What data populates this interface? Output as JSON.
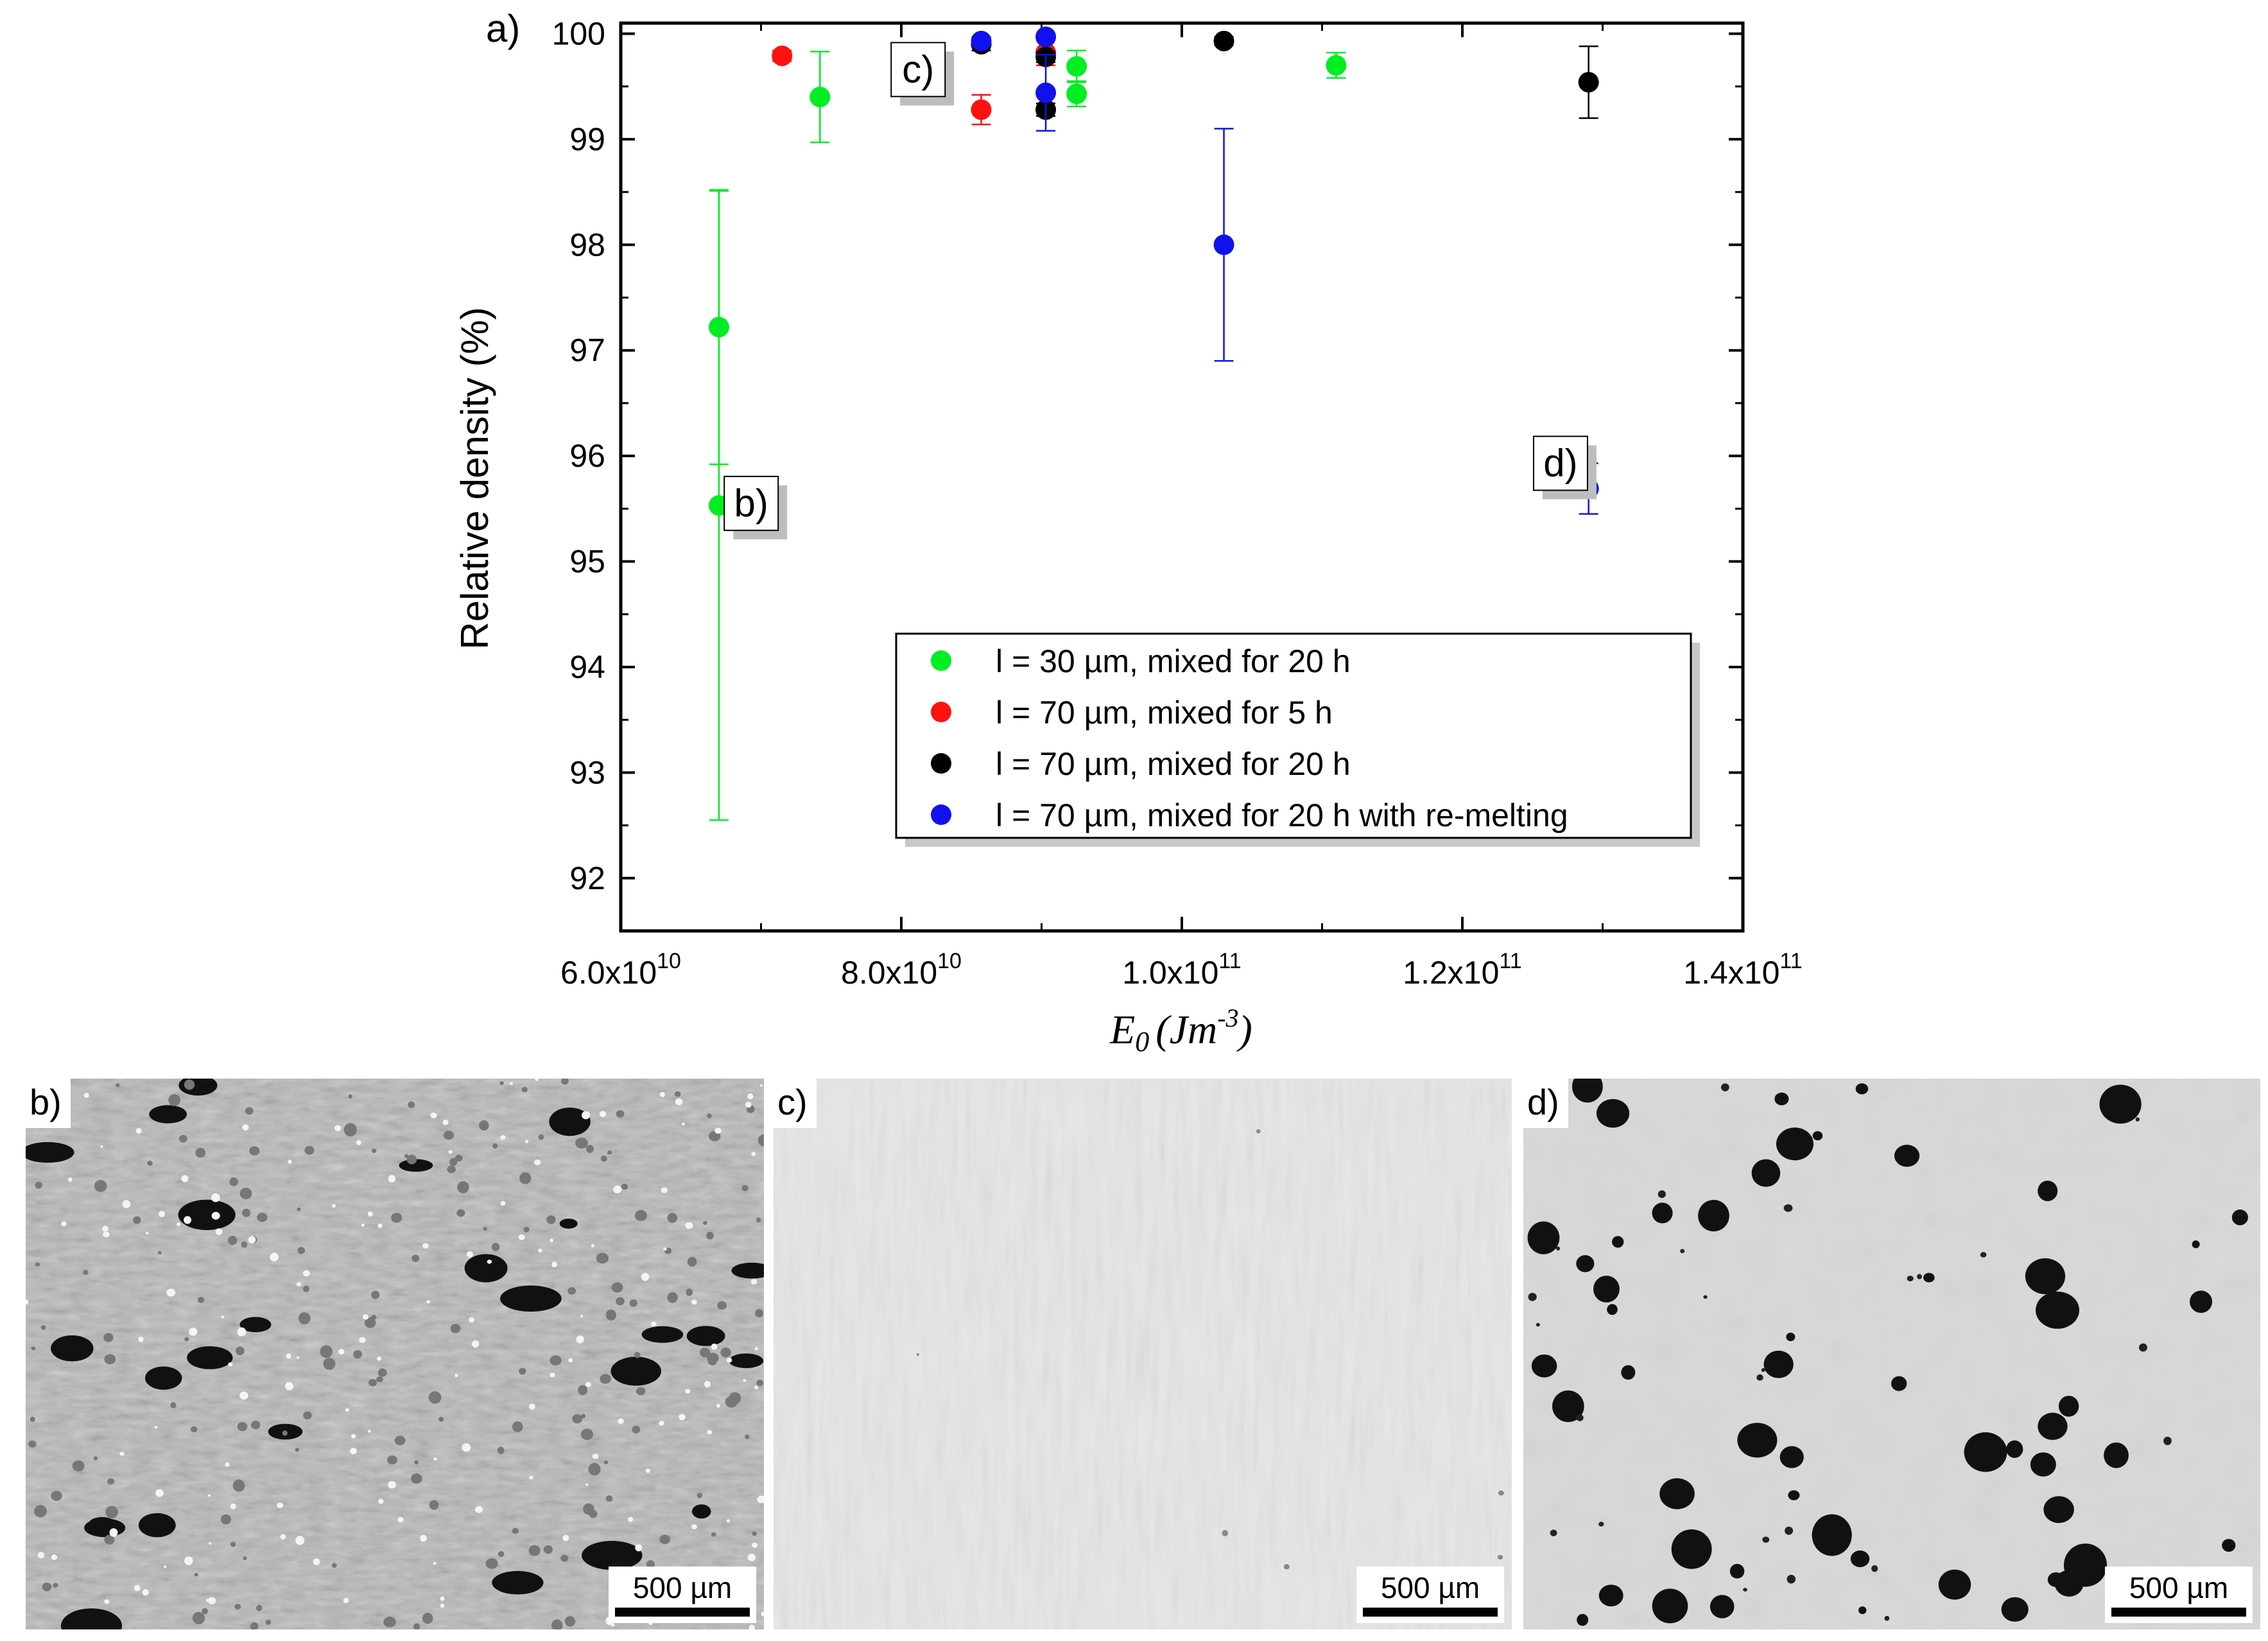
{
  "figure_label": "a)",
  "chart_data": {
    "type": "scatter",
    "title": "",
    "xlabel": "E",
    "xlabel_sub": "0",
    "xlabel_unit_open": "(Jm",
    "xlabel_unit_exp": "-3",
    "xlabel_unit_close": ")",
    "ylabel": "Relative density (%)",
    "xlim": [
      60000000000.0,
      140000000000.0
    ],
    "ylim": [
      91.5,
      100.1
    ],
    "x_ticks": [
      60000000000.0,
      80000000000.0,
      100000000000.0,
      120000000000.0,
      140000000000.0
    ],
    "x_tick_labels": [
      {
        "mant": "6.0x10",
        "exp": "10"
      },
      {
        "mant": "8.0x10",
        "exp": "10"
      },
      {
        "mant": "1.0x10",
        "exp": "11"
      },
      {
        "mant": "1.2x10",
        "exp": "11"
      },
      {
        "mant": "1.4x10",
        "exp": "11"
      }
    ],
    "y_ticks": [
      92,
      93,
      94,
      95,
      96,
      97,
      98,
      99,
      100
    ],
    "y_tick_labels": [
      "92",
      "93",
      "94",
      "95",
      "96",
      "97",
      "98",
      "99",
      "100"
    ],
    "grid": false,
    "legend_position": "bottom-right",
    "series": [
      {
        "name": "l = 30 µm, mixed for 20 h",
        "color": "#00ee22",
        "points": [
          {
            "x": 67000000000.0,
            "y": 97.22,
            "err": 1.3
          },
          {
            "x": 67000000000.0,
            "y": 95.53,
            "err": 2.98
          },
          {
            "x": 74200000000.0,
            "y": 99.4,
            "err": 0.43
          },
          {
            "x": 92500000000.0,
            "y": 99.69,
            "err": 0.15
          },
          {
            "x": 92500000000.0,
            "y": 99.43,
            "err": 0.12
          },
          {
            "x": 111000000000.0,
            "y": 99.7,
            "err": 0.12
          }
        ]
      },
      {
        "name": "l = 70 µm, mixed for 5 h",
        "color": "#ff1111",
        "points": [
          {
            "x": 71500000000.0,
            "y": 99.79,
            "err": 0.05
          },
          {
            "x": 85700000000.0,
            "y": 99.28,
            "err": 0.14
          },
          {
            "x": 90300000000.0,
            "y": 99.82,
            "err": 0.12
          }
        ]
      },
      {
        "name": "l = 70 µm, mixed for 20 h",
        "color": "#000000",
        "points": [
          {
            "x": 85700000000.0,
            "y": 99.9,
            "err": 0.06
          },
          {
            "x": 90300000000.0,
            "y": 99.28,
            "err": 0.06
          },
          {
            "x": 90300000000.0,
            "y": 99.78,
            "err": 0.05
          },
          {
            "x": 103000000000.0,
            "y": 99.93,
            "err": 0.04
          },
          {
            "x": 129000000000.0,
            "y": 99.54,
            "err": 0.34
          }
        ]
      },
      {
        "name": "l = 70 µm, mixed for 20 h with re-melting",
        "color": "#1111ee",
        "points": [
          {
            "x": 85700000000.0,
            "y": 99.93,
            "err": 0.04
          },
          {
            "x": 90300000000.0,
            "y": 99.97,
            "err": 0.03
          },
          {
            "x": 90300000000.0,
            "y": 99.44,
            "err": 0.36
          },
          {
            "x": 103000000000.0,
            "y": 98.0,
            "err": 1.1
          },
          {
            "x": 129000000000.0,
            "y": 95.69,
            "err": 0.24
          }
        ]
      }
    ],
    "annotations": [
      {
        "text": "b)",
        "x": 69300000000.0,
        "y": 95.55
      },
      {
        "text": "c)",
        "x": 81200000000.0,
        "y": 99.66
      },
      {
        "text": "d)",
        "x": 127000000000.0,
        "y": 95.93
      }
    ]
  },
  "micrographs": [
    {
      "label": "b)",
      "scale_bar": "500 µm",
      "background": "#b7b7b7",
      "pores": "many"
    },
    {
      "label": "c)",
      "scale_bar": "500 µm",
      "background": "#e9e9e9",
      "pores": "few"
    },
    {
      "label": "d)",
      "scale_bar": "500 µm",
      "background": "#d7d7d7",
      "pores": "round"
    }
  ]
}
